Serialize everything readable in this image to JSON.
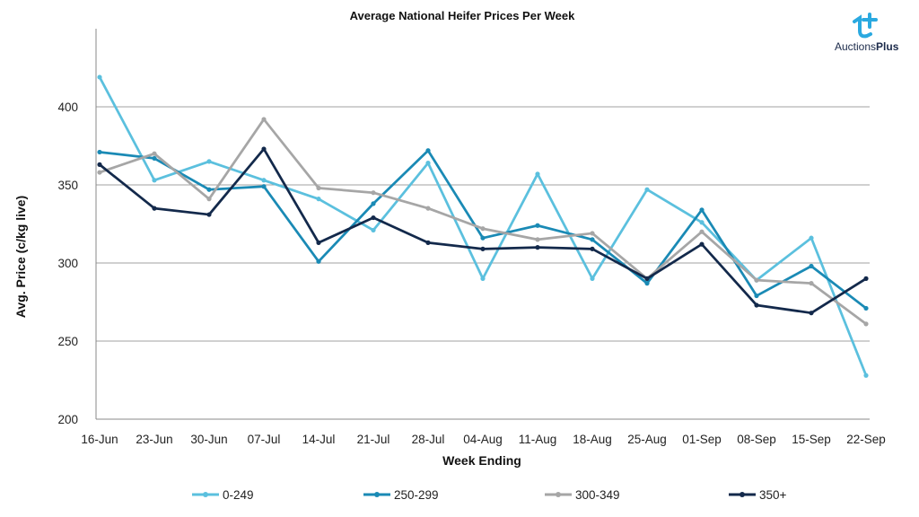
{
  "logo": {
    "text_regular": "Auctions",
    "text_bold": "Plus",
    "icon": "auctionsplus-logo-icon",
    "color": "#2aa9e0"
  },
  "chart_data": {
    "type": "line",
    "title": "Average National Heifer Prices Per Week",
    "xlabel": "Week Ending",
    "ylabel": "Avg. Price (c/kg live)",
    "ylim": [
      200,
      450
    ],
    "yticks": [
      200,
      250,
      300,
      350,
      400
    ],
    "grid": true,
    "legend": "bottom",
    "categories": [
      "16-Jun",
      "23-Jun",
      "30-Jun",
      "07-Jul",
      "14-Jul",
      "21-Jul",
      "28-Jul",
      "04-Aug",
      "11-Aug",
      "18-Aug",
      "25-Aug",
      "01-Sep",
      "08-Sep",
      "15-Sep",
      "22-Sep"
    ],
    "series": [
      {
        "name": "0-249",
        "color": "#5bc0de",
        "values": [
          419,
          353,
          365,
          353,
          341,
          321,
          364,
          290,
          357,
          290,
          347,
          326,
          289,
          316,
          228
        ]
      },
      {
        "name": "250-299",
        "color": "#1a8ab5",
        "values": [
          371,
          367,
          347,
          349,
          301,
          338,
          372,
          316,
          324,
          315,
          287,
          334,
          279,
          298,
          271
        ]
      },
      {
        "name": "300-349",
        "color": "#a6a6a6",
        "values": [
          358,
          370,
          341,
          392,
          348,
          345,
          335,
          322,
          315,
          319,
          290,
          320,
          289,
          287,
          261
        ]
      },
      {
        "name": "350+",
        "color": "#13294b",
        "values": [
          363,
          335,
          331,
          373,
          313,
          329,
          313,
          309,
          310,
          309,
          290,
          312,
          273,
          268,
          290
        ]
      }
    ]
  }
}
